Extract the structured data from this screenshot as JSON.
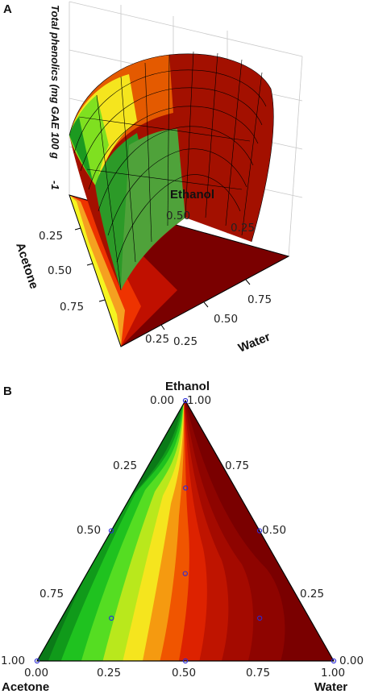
{
  "figure": {
    "panel_a_label": "A",
    "panel_b_label": "B"
  },
  "colors": {
    "scale_low": "#0b6a18",
    "scale_mid1": "#22cc22",
    "scale_mid2": "#f5f520",
    "scale_mid3": "#ee2200",
    "scale_high": "#7a0000",
    "design_point": "#2b2bd9",
    "mesh": "#000000"
  },
  "chart_data": [
    {
      "type": "surface",
      "panel": "A",
      "zlabel": "Total phenolics (mg GAE 100 g",
      "zlabel_suffix": "-1",
      "axes": {
        "ethanol": {
          "label": "Ethanol",
          "ticks": [
            "0.50",
            "0.25"
          ]
        },
        "acetone": {
          "label": "Acetone",
          "ticks": [
            "0.25",
            "0.50",
            "0.75"
          ]
        },
        "water": {
          "label": "Water",
          "ticks": [
            "0.75",
            "0.50",
            "0.25",
            "0.25"
          ]
        }
      }
    },
    {
      "type": "contour",
      "panel": "B",
      "components": [
        "Ethanol",
        "Acetone",
        "Water"
      ],
      "labels": {
        "top": "Ethanol",
        "left": "Acetone",
        "right": "Water"
      },
      "left_edge_ticks": [
        "1.00",
        "0.75",
        "0.50",
        "0.25",
        "0.00"
      ],
      "right_edge_ticks": [
        "1.00",
        "0.75",
        "0.50",
        "0.25",
        "0.00"
      ],
      "bottom_edge_ticks": [
        "0.00",
        "0.25",
        "0.50",
        "0.75",
        "1.00"
      ],
      "design_points": [
        {
          "ethanol": 1.0,
          "acetone": 0.0,
          "water": 0.0
        },
        {
          "ethanol": 0.0,
          "acetone": 1.0,
          "water": 0.0
        },
        {
          "ethanol": 0.0,
          "acetone": 0.0,
          "water": 1.0
        },
        {
          "ethanol": 0.5,
          "acetone": 0.5,
          "water": 0.0
        },
        {
          "ethanol": 0.5,
          "acetone": 0.0,
          "water": 0.5
        },
        {
          "ethanol": 0.0,
          "acetone": 0.5,
          "water": 0.5
        },
        {
          "ethanol": 0.667,
          "acetone": 0.167,
          "water": 0.167
        },
        {
          "ethanol": 0.333,
          "acetone": 0.333,
          "water": 0.333
        },
        {
          "ethanol": 0.167,
          "acetone": 0.667,
          "water": 0.167
        },
        {
          "ethanol": 0.167,
          "acetone": 0.167,
          "water": 0.667
        }
      ]
    }
  ]
}
